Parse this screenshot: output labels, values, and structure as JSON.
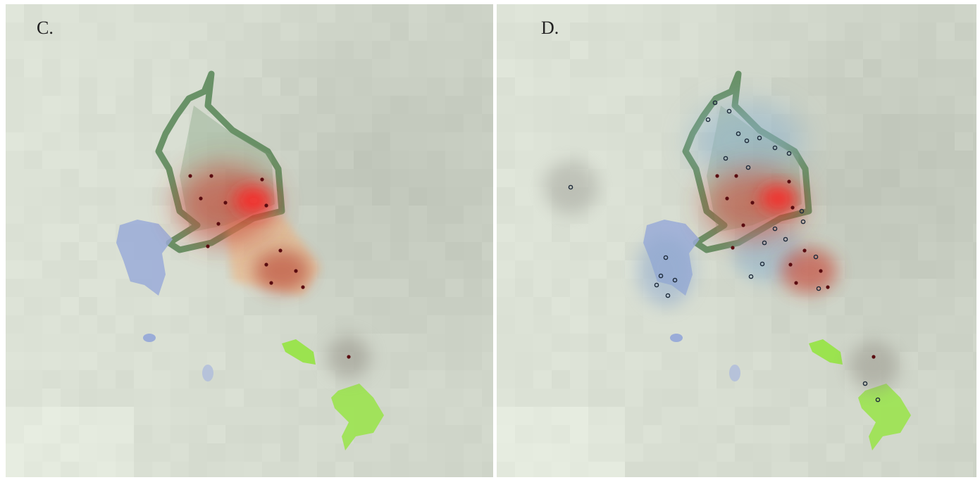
{
  "panels": [
    {
      "label": "C."
    },
    {
      "label": "D."
    }
  ]
}
